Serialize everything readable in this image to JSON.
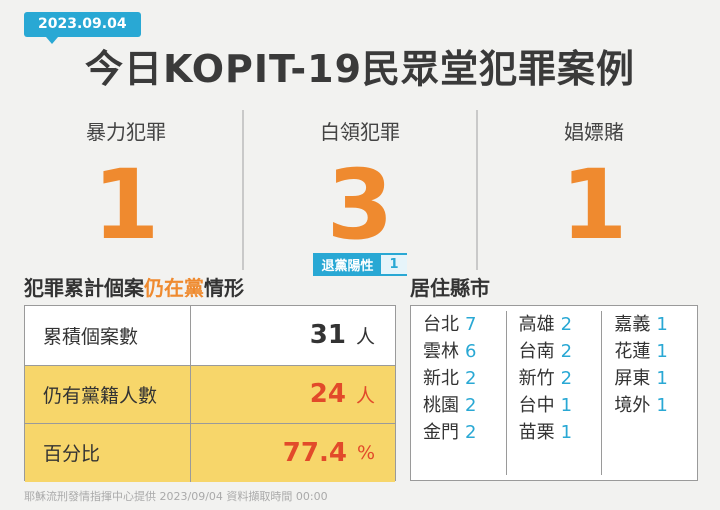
{
  "date": "2023.09.04",
  "title": "今日KOPIT-19民眾堂犯罪案例",
  "stats": [
    {
      "label": "暴力犯罪",
      "value": "1"
    },
    {
      "label": "白領犯罪",
      "value": "3",
      "sub_label": "退黨陽性",
      "sub_value": "1"
    },
    {
      "label": "娼嫖賭",
      "value": "1"
    }
  ],
  "section_left": {
    "part1": "犯罪累計個案",
    "highlight": "仍在黨",
    "part2": "情形"
  },
  "section_right": "居住縣市",
  "table": [
    {
      "label": "累積個案數",
      "value": "31",
      "unit": "人"
    },
    {
      "label": "仍有黨籍人數",
      "value": "24",
      "unit": "人"
    },
    {
      "label": "百分比",
      "value": "77.4",
      "unit": "%"
    }
  ],
  "counties": [
    [
      {
        "name": "台北",
        "count": "7"
      },
      {
        "name": "雲林",
        "count": "6"
      },
      {
        "name": "新北",
        "count": "2"
      },
      {
        "name": "桃園",
        "count": "2"
      },
      {
        "name": "金門",
        "count": "2"
      }
    ],
    [
      {
        "name": "高雄",
        "count": "2"
      },
      {
        "name": "台南",
        "count": "2"
      },
      {
        "name": "新竹",
        "count": "2"
      },
      {
        "name": "台中",
        "count": "1"
      },
      {
        "name": "苗栗",
        "count": "1"
      }
    ],
    [
      {
        "name": "嘉義",
        "count": "1"
      },
      {
        "name": "花蓮",
        "count": "1"
      },
      {
        "name": "屏東",
        "count": "1"
      },
      {
        "name": "境外",
        "count": "1"
      }
    ]
  ],
  "footer": "耶穌流刑發情指揮中心提供 2023/09/04 資料擷取時間 00:00",
  "colors": {
    "accent": "#ef8a2f",
    "blue": "#29a8d4",
    "yellow": "#f7d66a",
    "red": "#e24a2a"
  }
}
